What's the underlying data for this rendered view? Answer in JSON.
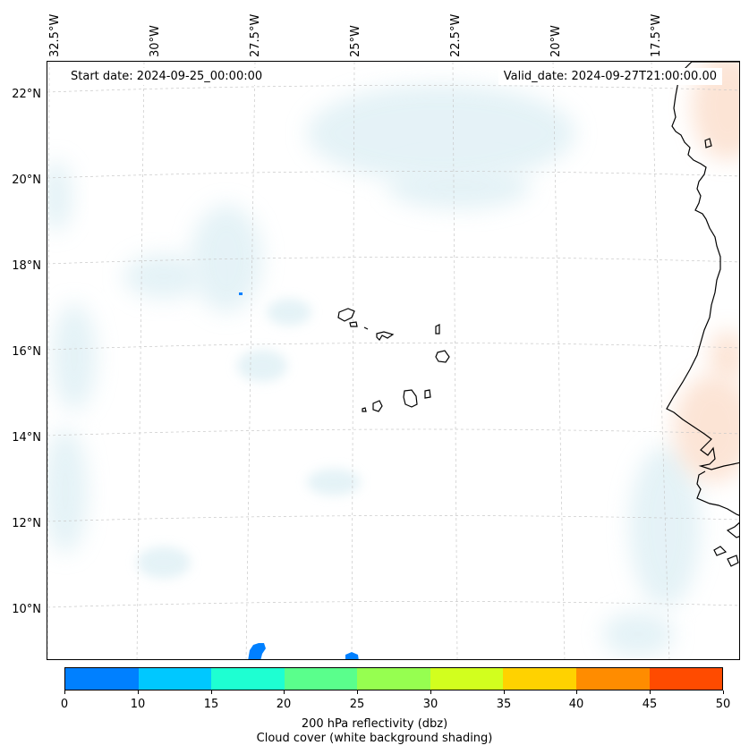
{
  "map": {
    "start_date_label": "Start date: 2024-09-25_00:00:00",
    "valid_date_label": "Valid_date: 2024-09-27T21:00:00.00",
    "lon_labels": [
      "32.5°W",
      "30°W",
      "27.5°W",
      "25°W",
      "22.5°W",
      "20°W",
      "17.5°W"
    ],
    "lat_labels": [
      "22°N",
      "20°N",
      "18°N",
      "16°N",
      "14°N",
      "12°N",
      "10°N"
    ],
    "features": [
      "cape-verde-islands",
      "west-african-coastline"
    ]
  },
  "colorbar": {
    "ticks": [
      "0",
      "10",
      "15",
      "20",
      "25",
      "30",
      "35",
      "40",
      "45",
      "50"
    ],
    "colors": [
      "#0080ff",
      "#00c8ff",
      "#1effd2",
      "#5aff8c",
      "#96ff50",
      "#d2ff1e",
      "#ffd200",
      "#ff8c00",
      "#ff4b00"
    ],
    "label_line1": "200 hPa reflectivity (dbz)",
    "label_line2": "Cloud cover (white background shading)"
  }
}
